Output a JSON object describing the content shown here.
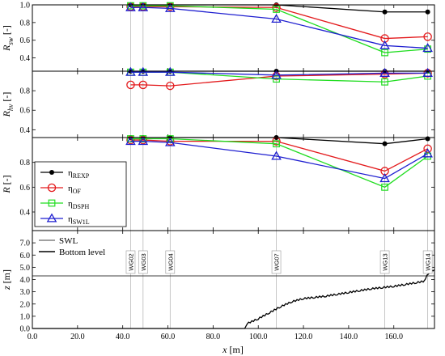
{
  "figure": {
    "x_axis": {
      "label": "x [m]",
      "ticks": [
        "0.0",
        "20.0",
        "40.0",
        "60.0",
        "80.0",
        "100.0",
        "120.0",
        "140.0",
        "160.0"
      ]
    },
    "legend_panel3": [
      {
        "label": "η",
        "sub": "REXP",
        "color": "#000000",
        "marker": "dot"
      },
      {
        "label": "η",
        "sub": "OF",
        "color": "#e31a1c",
        "marker": "circle"
      },
      {
        "label": "η",
        "sub": "DSPH",
        "color": "#22dd22",
        "marker": "square"
      },
      {
        "label": "η",
        "sub": "SW1L",
        "color": "#1f1fd0",
        "marker": "triangle"
      }
    ],
    "legend_panel4": [
      {
        "label": "SWL",
        "style": "thin"
      },
      {
        "label": "Bottom level",
        "style": "thick"
      }
    ]
  },
  "chart_data": [
    {
      "type": "line",
      "ylabel": "R_sw [-]",
      "ylabel_main": "R",
      "ylabel_sub": "sw",
      "ylabel_unit": "[-]",
      "ylim": [
        0.25,
        1.0
      ],
      "yticks": [
        "0.4",
        "0.6",
        "0.8",
        "1.0"
      ],
      "ytick_values": [
        0.4,
        0.6,
        0.8,
        1.0
      ],
      "x": [
        43.5,
        49.0,
        61.0,
        108.0,
        156.0,
        175.0
      ],
      "series": [
        {
          "name": "ηREXP",
          "values": [
            1.0,
            1.0,
            1.0,
            1.0,
            0.92,
            0.92
          ]
        },
        {
          "name": "ηOF",
          "values": [
            0.98,
            0.98,
            0.98,
            0.97,
            0.62,
            0.64
          ]
        },
        {
          "name": "ηDSPH",
          "values": [
            0.99,
            0.99,
            0.99,
            0.95,
            0.46,
            0.5
          ]
        },
        {
          "name": "ηSW1L",
          "values": [
            0.97,
            0.97,
            0.96,
            0.84,
            0.54,
            0.51
          ]
        }
      ]
    },
    {
      "type": "line",
      "ylabel": "R_hv [-]",
      "ylabel_main": "R",
      "ylabel_sub": "hv",
      "ylabel_unit": "[-]",
      "ylim": [
        0.32,
        1.0
      ],
      "yticks": [
        "0.4",
        "0.6",
        "0.8"
      ],
      "ytick_values": [
        0.4,
        0.6,
        0.8
      ],
      "x": [
        43.5,
        49.0,
        61.0,
        108.0,
        156.0,
        175.0
      ],
      "series": [
        {
          "name": "ηREXP",
          "values": [
            1.0,
            1.0,
            1.0,
            1.0,
            1.0,
            1.0
          ]
        },
        {
          "name": "ηOF",
          "values": [
            0.86,
            0.86,
            0.85,
            0.95,
            0.97,
            0.98
          ]
        },
        {
          "name": "ηDSPH",
          "values": [
            0.99,
            0.99,
            0.99,
            0.92,
            0.89,
            0.95
          ]
        },
        {
          "name": "ηSW1L",
          "values": [
            0.99,
            0.99,
            0.99,
            0.96,
            0.98,
            0.98
          ]
        }
      ]
    },
    {
      "type": "line",
      "ylabel": "R [-]",
      "ylabel_main": "R",
      "ylabel_sub": "",
      "ylabel_unit": "[-]",
      "ylim": [
        0.25,
        1.0
      ],
      "yticks": [
        "0.4",
        "0.6",
        "0.8"
      ],
      "ytick_values": [
        0.4,
        0.6,
        0.8
      ],
      "x": [
        43.5,
        49.0,
        61.0,
        108.0,
        156.0,
        175.0
      ],
      "series": [
        {
          "name": "ηREXP",
          "values": [
            1.0,
            1.0,
            1.0,
            1.0,
            0.95,
            0.99
          ]
        },
        {
          "name": "ηOF",
          "values": [
            0.98,
            0.98,
            0.97,
            0.97,
            0.73,
            0.91
          ]
        },
        {
          "name": "ηDSPH",
          "values": [
            0.99,
            0.99,
            0.99,
            0.95,
            0.6,
            0.85
          ]
        },
        {
          "name": "ηSW1L",
          "values": [
            0.97,
            0.97,
            0.96,
            0.85,
            0.67,
            0.87
          ]
        }
      ]
    },
    {
      "type": "line",
      "ylabel": "z [m]",
      "ylabel_main": "z",
      "ylabel_sub": "",
      "ylabel_unit": "[m]",
      "ylim": [
        0.0,
        8.0
      ],
      "yticks": [
        "0.0",
        "1.0",
        "2.0",
        "3.0",
        "4.0",
        "5.0",
        "6.0",
        "7.0"
      ],
      "ytick_values": [
        0,
        1,
        2,
        3,
        4,
        5,
        6,
        7
      ],
      "swl": 4.3,
      "gauges": [
        {
          "name": "WG02",
          "x": 43.5
        },
        {
          "name": "WG03",
          "x": 49.0
        },
        {
          "name": "WG04",
          "x": 61.0
        },
        {
          "name": "WG07",
          "x": 108.0
        },
        {
          "name": "WG13",
          "x": 156.0
        },
        {
          "name": "WG14",
          "x": 175.0
        }
      ],
      "bottom_profile": {
        "x": [
          0,
          94,
          95,
          100,
          105,
          110,
          115,
          120,
          125,
          130,
          135,
          140,
          145,
          150,
          155,
          160,
          165,
          170,
          173,
          174,
          176,
          178
        ],
        "y": [
          0,
          0,
          0.4,
          0.8,
          1.3,
          1.8,
          2.2,
          2.45,
          2.55,
          2.65,
          2.8,
          2.95,
          3.1,
          3.25,
          3.35,
          3.45,
          3.6,
          3.75,
          3.85,
          4.1,
          4.7,
          4.8
        ]
      }
    }
  ]
}
